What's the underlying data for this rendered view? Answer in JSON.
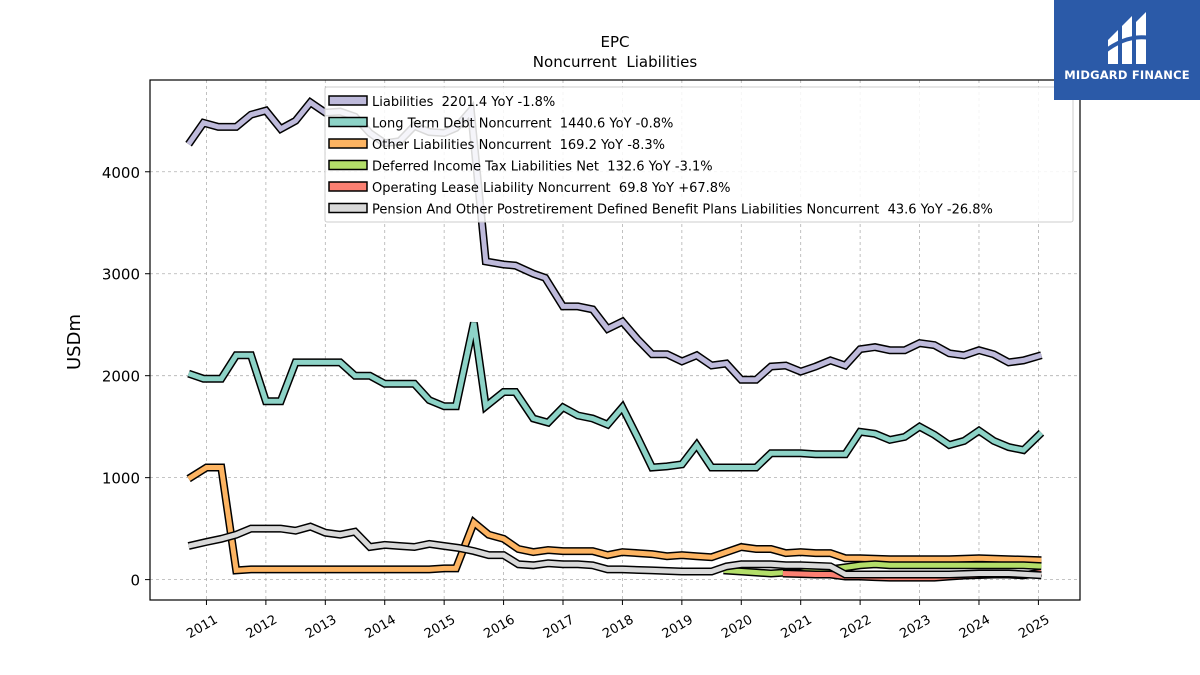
{
  "chart_data": {
    "type": "line",
    "title": "EPC",
    "subtitle": "Noncurrent  Liabilities",
    "ylabel": "USDm",
    "xlabel": "",
    "ylim": [
      -200,
      4900
    ],
    "xlim": [
      2010.05,
      2025.7
    ],
    "yticks": [
      0,
      1000,
      2000,
      3000,
      4000
    ],
    "xticks": [
      "2011",
      "2012",
      "2013",
      "2014",
      "2015",
      "2016",
      "2017",
      "2018",
      "2019",
      "2020",
      "2021",
      "2022",
      "2023",
      "2024",
      "2025"
    ],
    "grid": true,
    "legend_position": "top-center",
    "series": [
      {
        "name": "Liabilities  2201.4 YoY -1.8%",
        "color": "#bebadb",
        "x": [
          2010.7,
          2010.95,
          2011.2,
          2011.5,
          2011.75,
          2012.0,
          2012.25,
          2012.5,
          2012.75,
          2013.0,
          2013.25,
          2013.5,
          2013.75,
          2014.0,
          2014.25,
          2014.5,
          2014.75,
          2015.0,
          2015.2,
          2015.45,
          2015.7,
          2016.0,
          2016.2,
          2016.5,
          2016.7,
          2017.0,
          2017.25,
          2017.5,
          2017.75,
          2018.0,
          2018.25,
          2018.5,
          2018.75,
          2019.0,
          2019.25,
          2019.5,
          2019.75,
          2020.0,
          2020.25,
          2020.5,
          2020.75,
          2021.0,
          2021.25,
          2021.5,
          2021.75,
          2022.0,
          2022.25,
          2022.5,
          2022.75,
          2023.0,
          2023.25,
          2023.5,
          2023.75,
          2024.0,
          2024.25,
          2024.5,
          2024.75,
          2025.05
        ],
        "values": [
          4270,
          4480,
          4440,
          4440,
          4560,
          4600,
          4420,
          4500,
          4680,
          4580,
          4590,
          4540,
          4380,
          4280,
          4300,
          4450,
          4390,
          4380,
          4430,
          4600,
          3120,
          3090,
          3080,
          3000,
          2960,
          2680,
          2680,
          2650,
          2460,
          2530,
          2360,
          2210,
          2210,
          2140,
          2200,
          2100,
          2120,
          1960,
          1960,
          2090,
          2100,
          2040,
          2090,
          2150,
          2100,
          2260,
          2280,
          2250,
          2250,
          2320,
          2300,
          2220,
          2200,
          2250,
          2210,
          2130,
          2150,
          2201
        ]
      },
      {
        "name": "Long Term Debt Noncurrent  1440.6 YoY -0.8%",
        "color": "#8dd3c7",
        "x": [
          2010.7,
          2010.95,
          2011.25,
          2011.5,
          2011.75,
          2012.0,
          2012.25,
          2012.5,
          2012.75,
          2013.0,
          2013.25,
          2013.5,
          2013.75,
          2014.0,
          2014.25,
          2014.5,
          2014.75,
          2015.0,
          2015.2,
          2015.5,
          2015.7,
          2016.0,
          2016.2,
          2016.5,
          2016.75,
          2017.0,
          2017.25,
          2017.5,
          2017.75,
          2018.0,
          2018.25,
          2018.5,
          2018.75,
          2019.0,
          2019.25,
          2019.5,
          2019.75,
          2020.0,
          2020.25,
          2020.5,
          2020.75,
          2021.0,
          2021.25,
          2021.5,
          2021.75,
          2022.0,
          2022.25,
          2022.5,
          2022.75,
          2023.0,
          2023.25,
          2023.5,
          2023.75,
          2024.0,
          2024.25,
          2024.5,
          2024.75,
          2025.05
        ],
        "values": [
          2020,
          1970,
          1970,
          2200,
          2200,
          1750,
          1750,
          2130,
          2130,
          2130,
          2130,
          2000,
          2000,
          1920,
          1920,
          1920,
          1760,
          1700,
          1700,
          2520,
          1700,
          1840,
          1840,
          1580,
          1540,
          1690,
          1610,
          1580,
          1520,
          1690,
          1400,
          1100,
          1110,
          1130,
          1320,
          1100,
          1100,
          1100,
          1100,
          1240,
          1240,
          1240,
          1230,
          1230,
          1230,
          1450,
          1430,
          1370,
          1400,
          1500,
          1420,
          1320,
          1360,
          1460,
          1360,
          1300,
          1270,
          1440
        ]
      },
      {
        "name": "Other Liabilities Noncurrent  169.2 YoY -8.3%",
        "color": "#fdb462",
        "x": [
          2010.7,
          2011.0,
          2011.25,
          2011.5,
          2011.75,
          2012.0,
          2012.5,
          2013.0,
          2013.5,
          2013.75,
          2014.0,
          2014.5,
          2014.75,
          2015.0,
          2015.2,
          2015.5,
          2015.75,
          2016.0,
          2016.25,
          2016.5,
          2016.75,
          2017.0,
          2017.25,
          2017.5,
          2017.75,
          2018.0,
          2018.25,
          2018.5,
          2018.75,
          2019.0,
          2019.25,
          2019.5,
          2019.75,
          2020.0,
          2020.25,
          2020.5,
          2020.75,
          2021.0,
          2021.25,
          2021.5,
          2021.75,
          2022.0,
          2022.5,
          2023.0,
          2023.5,
          2024.0,
          2024.5,
          2025.05
        ],
        "values": [
          990,
          1100,
          1100,
          90,
          100,
          100,
          100,
          100,
          100,
          100,
          100,
          100,
          100,
          110,
          110,
          560,
          440,
          400,
          300,
          270,
          290,
          280,
          280,
          280,
          240,
          270,
          260,
          250,
          230,
          240,
          230,
          220,
          270,
          320,
          300,
          300,
          260,
          270,
          260,
          260,
          210,
          210,
          200,
          200,
          200,
          210,
          200,
          190
        ]
      },
      {
        "name": "Deferred Income Tax Liabilities Net  132.6 YoY -3.1%",
        "color": "#b3de69",
        "x": [
          2019.7,
          2020.0,
          2020.25,
          2020.5,
          2020.75,
          2021.0,
          2021.25,
          2021.5,
          2021.75,
          2022.0,
          2022.25,
          2022.5,
          2022.75,
          2023.0,
          2023.25,
          2023.5,
          2023.75,
          2024.0,
          2024.25,
          2024.5,
          2024.75,
          2025.05
        ],
        "values": [
          90,
          80,
          70,
          60,
          70,
          70,
          90,
          100,
          120,
          140,
          150,
          140,
          140,
          140,
          140,
          140,
          140,
          140,
          140,
          140,
          140,
          132
        ]
      },
      {
        "name": "Operating Lease Liability Noncurrent  69.8 YoY +67.8%",
        "color": "#fb8072",
        "x": [
          2020.7,
          2021.0,
          2021.25,
          2021.5,
          2021.75,
          2022.0,
          2022.25,
          2022.5,
          2022.75,
          2023.0,
          2023.25,
          2023.5,
          2023.75,
          2024.0,
          2024.25,
          2024.5,
          2024.75,
          2025.05
        ],
        "values": [
          60,
          55,
          50,
          50,
          30,
          30,
          25,
          20,
          20,
          20,
          20,
          30,
          40,
          45,
          50,
          50,
          42,
          70
        ]
      },
      {
        "name": "Pension And Other Postretirement Defined Benefit Plans Liabilities Noncurrent  43.6 YoY -26.8%",
        "color": "#d9d9d9",
        "x": [
          2010.7,
          2011.0,
          2011.25,
          2011.5,
          2011.75,
          2012.0,
          2012.25,
          2012.5,
          2012.75,
          2013.0,
          2013.25,
          2013.5,
          2013.75,
          2014.0,
          2014.25,
          2014.5,
          2014.75,
          2015.0,
          2015.25,
          2015.5,
          2015.75,
          2016.0,
          2016.25,
          2016.5,
          2016.75,
          2017.0,
          2017.25,
          2017.5,
          2017.75,
          2018.0,
          2018.5,
          2019.0,
          2019.5,
          2019.75,
          2020.0,
          2020.5,
          2020.75,
          2021.0,
          2021.5,
          2021.75,
          2022.0,
          2022.5,
          2023.0,
          2023.5,
          2024.0,
          2024.5,
          2025.05
        ],
        "values": [
          330,
          370,
          400,
          440,
          500,
          500,
          500,
          480,
          520,
          460,
          440,
          470,
          320,
          340,
          330,
          320,
          350,
          330,
          310,
          280,
          240,
          240,
          150,
          140,
          160,
          150,
          150,
          140,
          100,
          100,
          90,
          80,
          80,
          130,
          150,
          150,
          140,
          140,
          130,
          50,
          50,
          50,
          50,
          50,
          60,
          60,
          43
        ]
      }
    ]
  },
  "logo": {
    "text": "MIDGARD FINANCE"
  }
}
